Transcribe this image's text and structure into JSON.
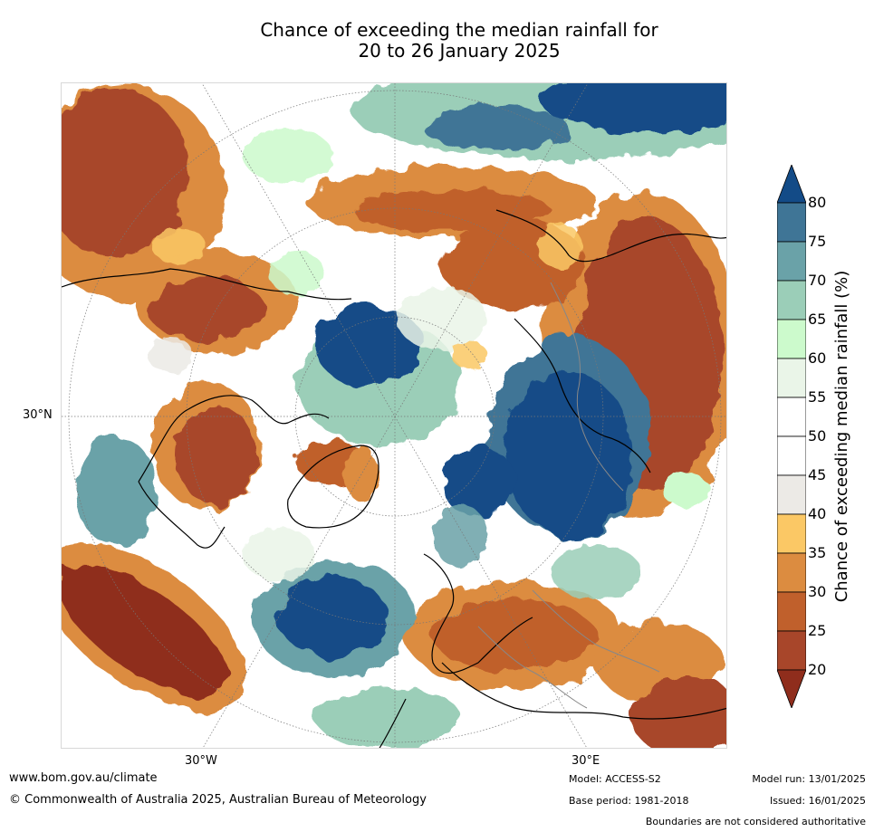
{
  "title": {
    "line1": "Chance of exceeding the median rainfall for",
    "line2": "20 to 26 January 2025"
  },
  "map": {
    "projection": "north polar stereographic",
    "lat_label": "30°N",
    "lon_labels": [
      "30°W",
      "30°E"
    ]
  },
  "colorbar": {
    "label": "Chance of exceeding median rainfall (%)",
    "ticks": [
      "80",
      "75",
      "70",
      "65",
      "60",
      "55",
      "50",
      "45",
      "40",
      "35",
      "30",
      "25",
      "20"
    ],
    "bins": [
      {
        "range": "80+",
        "color": "#134b87"
      },
      {
        "range": "75-80",
        "color": "#3f7596"
      },
      {
        "range": "70-75",
        "color": "#6aa2a8"
      },
      {
        "range": "65-70",
        "color": "#9bceb8"
      },
      {
        "range": "60-65",
        "color": "#ccfacc"
      },
      {
        "range": "55-60",
        "color": "#eaf5e8"
      },
      {
        "range": "50-55",
        "color": "#ffffff"
      },
      {
        "range": "45-50",
        "color": "#ffffff"
      },
      {
        "range": "40-45",
        "color": "#eceae6"
      },
      {
        "range": "35-40",
        "color": "#fbc865"
      },
      {
        "range": "30-35",
        "color": "#dc8c40"
      },
      {
        "range": "25-30",
        "color": "#c0602c"
      },
      {
        "range": "20-25",
        "color": "#a8462a"
      },
      {
        "range": "<20",
        "color": "#8f2d1c"
      }
    ]
  },
  "footer": {
    "url": "www.bom.gov.au/climate",
    "copyright": "© Commonwealth of Australia 2025, Australian Bureau of Meteorology",
    "model": "Model: ACCESS-S2",
    "base_period": "Base period: 1981-2018",
    "model_run": "Model run: 13/01/2025",
    "issued": "Issued: 16/01/2025",
    "disclaimer": "Boundaries are not considered authoritative"
  }
}
